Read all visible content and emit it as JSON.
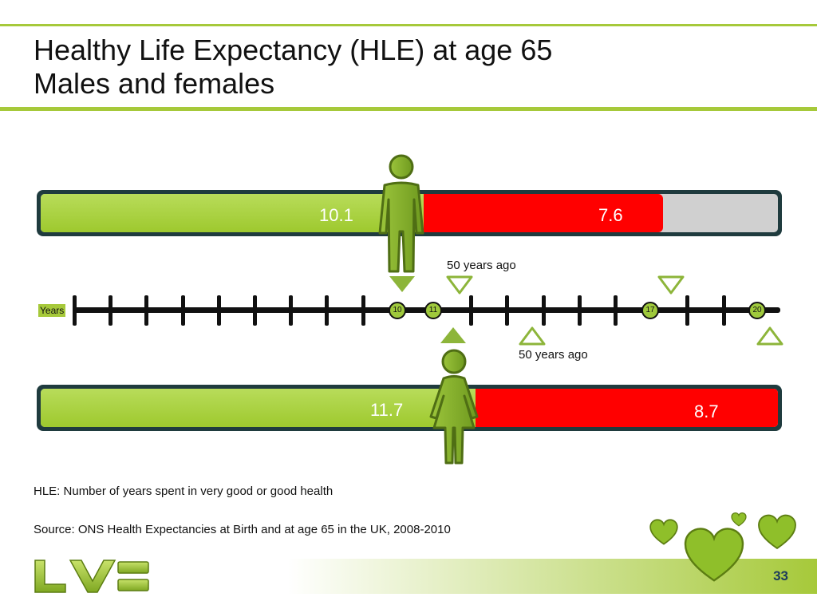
{
  "slide": {
    "title_line1": "Healthy Life Expectancy (HLE) at age 65",
    "title_line2": "Males and females",
    "page_number": "33"
  },
  "male_bar": {
    "hle_value": "10.1",
    "remaining_value": "7.6"
  },
  "female_bar": {
    "hle_value": "11.7",
    "remaining_value": "8.7"
  },
  "timeline": {
    "label": "Years",
    "markers": [
      "10",
      "11",
      "17",
      "20"
    ]
  },
  "annotations": {
    "male_50_years_ago": "50 years ago",
    "female_50_years_ago": "50 years ago"
  },
  "footnotes": {
    "definition": "HLE: Number of years spent in very good or good health",
    "source": "Source: ONS Health Expectancies at Birth and at age 65 in the UK, 2008-2010"
  },
  "brand": {
    "logo": "LV=",
    "accent_color": "#a6c93a",
    "red": "#ff0000",
    "frame_color": "#1f3b3e"
  },
  "icons": [
    "male-figure-icon",
    "female-figure-icon",
    "heart-icon",
    "triangle-down-icon",
    "triangle-up-icon"
  ]
}
